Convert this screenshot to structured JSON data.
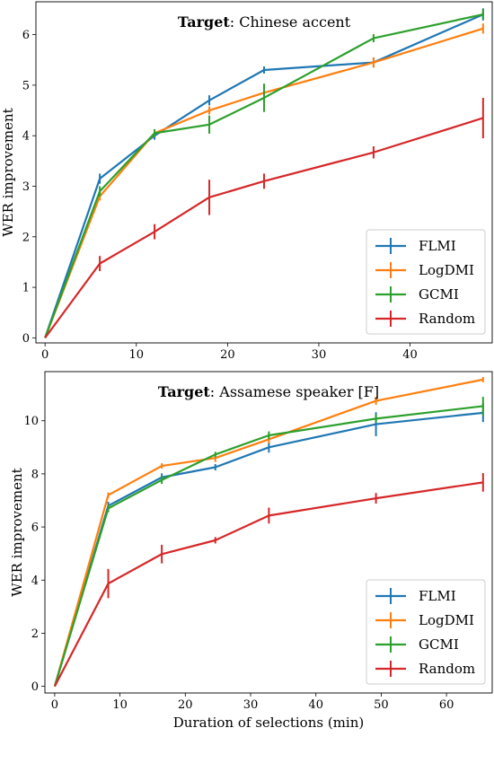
{
  "chart_data": [
    {
      "type": "line",
      "title_bold": "Target",
      "title_rest": ": Chinese accent",
      "xlabel": "",
      "ylabel": "WER improvement",
      "xlim": [
        -1,
        49
      ],
      "ylim": [
        -0.1,
        6.65
      ],
      "xticks": [
        0,
        10,
        20,
        30,
        40
      ],
      "yticks": [
        0,
        1,
        2,
        3,
        4,
        5,
        6
      ],
      "legend_position": "lower-right",
      "series": [
        {
          "name": "FLMI",
          "color": "#1f77b4",
          "x": [
            0,
            6,
            12,
            18,
            24,
            36,
            48
          ],
          "y": [
            0,
            3.15,
            4.0,
            4.7,
            5.3,
            5.45,
            6.4
          ],
          "err": [
            0,
            0.1,
            0.08,
            0.1,
            0.07,
            0.1,
            0.12
          ]
        },
        {
          "name": "LogDMI",
          "color": "#ff7f0e",
          "x": [
            0,
            6,
            12,
            18,
            24,
            36,
            48
          ],
          "y": [
            0,
            2.8,
            4.05,
            4.5,
            4.85,
            5.45,
            6.12
          ],
          "err": [
            0,
            0.08,
            0.07,
            0.08,
            0.07,
            0.1,
            0.1
          ]
        },
        {
          "name": "GCMI",
          "color": "#2ca02c",
          "x": [
            0,
            6,
            12,
            18,
            24,
            36,
            48
          ],
          "y": [
            0,
            2.9,
            4.05,
            4.22,
            4.75,
            5.93,
            6.4
          ],
          "err": [
            0,
            0.1,
            0.08,
            0.18,
            0.28,
            0.08,
            0.1
          ]
        },
        {
          "name": "Random",
          "color": "#d62728",
          "x": [
            0,
            6,
            12,
            18,
            24,
            36,
            48
          ],
          "y": [
            0,
            1.47,
            2.1,
            2.78,
            3.1,
            3.67,
            4.35
          ],
          "err": [
            0,
            0.15,
            0.15,
            0.35,
            0.15,
            0.12,
            0.4
          ]
        }
      ]
    },
    {
      "type": "line",
      "title_bold": "Target",
      "title_rest": ": Assamese speaker [F]",
      "xlabel": "Duration of selections (min)",
      "ylabel": "WER improvement",
      "xlim": [
        -1.5,
        67
      ],
      "ylim": [
        -0.25,
        11.85
      ],
      "xticks": [
        0,
        10,
        20,
        30,
        40,
        50,
        60
      ],
      "yticks": [
        0,
        2,
        4,
        6,
        8,
        10
      ],
      "legend_position": "lower-right",
      "series": [
        {
          "name": "FLMI",
          "color": "#1f77b4",
          "x": [
            0,
            8.2,
            16.4,
            24.6,
            32.8,
            49.2,
            65.6
          ],
          "y": [
            0,
            6.8,
            7.87,
            8.25,
            9.0,
            9.87,
            10.3
          ],
          "err": [
            0,
            0.15,
            0.15,
            0.12,
            0.2,
            0.45,
            0.35
          ]
        },
        {
          "name": "LogDMI",
          "color": "#ff7f0e",
          "x": [
            0,
            8.2,
            16.4,
            24.6,
            32.8,
            49.2,
            65.6
          ],
          "y": [
            0,
            7.2,
            8.3,
            8.6,
            9.3,
            10.75,
            11.55
          ],
          "err": [
            0,
            0.1,
            0.1,
            0.15,
            0.15,
            0.15,
            0.1
          ]
        },
        {
          "name": "GCMI",
          "color": "#2ca02c",
          "x": [
            0,
            8.2,
            16.4,
            24.6,
            32.8,
            49.2,
            65.6
          ],
          "y": [
            0,
            6.7,
            7.77,
            8.73,
            9.45,
            10.08,
            10.55
          ],
          "err": [
            0,
            0.15,
            0.15,
            0.1,
            0.15,
            0.15,
            0.35
          ]
        },
        {
          "name": "Random",
          "color": "#d62728",
          "x": [
            0,
            8.2,
            16.4,
            24.6,
            32.8,
            49.2,
            65.6
          ],
          "y": [
            0,
            3.87,
            4.98,
            5.5,
            6.43,
            7.08,
            7.68
          ],
          "err": [
            0,
            0.55,
            0.35,
            0.12,
            0.3,
            0.2,
            0.35
          ]
        }
      ]
    }
  ]
}
